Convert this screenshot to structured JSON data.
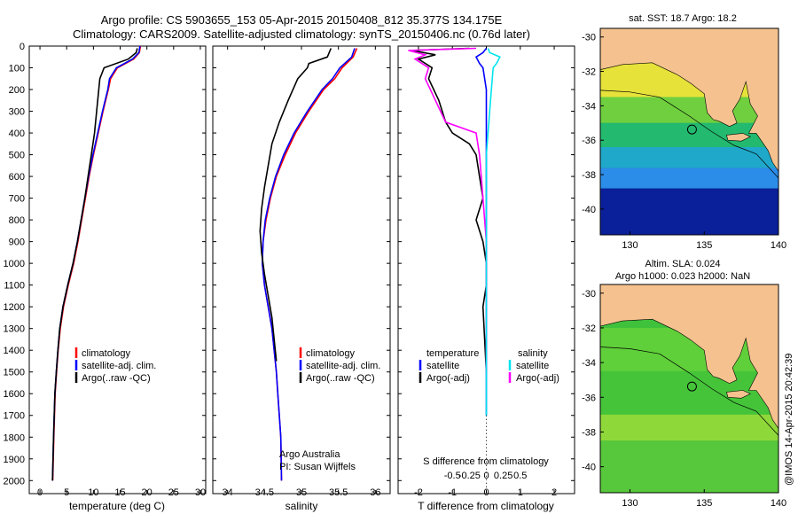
{
  "header": {
    "line1": "Argo profile: CS 5903655_153 05-Apr-2015 20150408_812 35.377S 134.175E",
    "line2": "Climatology: CARS2009. Satellite-adjusted climatology: synTS_20150406.nc (0.76d later)"
  },
  "map_top_title": "sat. SST: 18.7 Argo: 18.2",
  "map_bottom_title1": "Altim. SLA: 0.024",
  "map_bottom_title2": "Argo h1000: 0.023 h2000: NaN",
  "credit": "Argo Australia",
  "pi": "PI: Susan Wijffels",
  "timestamp": "@IMOS 14-Apr-2015 20:42:39",
  "colors": {
    "climatology": "#ff0000",
    "satellite": "#0000ff",
    "argo": "#000000",
    "sat_salinity": "#00e5ee",
    "argo_salinity": "#ff00ff",
    "land": "#f5c28f"
  },
  "chart_data": [
    {
      "type": "line",
      "xlabel": "temperature (deg C)",
      "xlim": [
        -2,
        31
      ],
      "xticks": [
        0,
        5,
        10,
        15,
        20,
        25,
        30
      ],
      "ylim": [
        0,
        2060
      ],
      "yticks": [
        0,
        100,
        200,
        300,
        400,
        500,
        600,
        700,
        800,
        900,
        1000,
        1100,
        1200,
        1300,
        1400,
        1500,
        1600,
        1700,
        1800,
        1900,
        2000
      ],
      "legend": [
        "climatology",
        "satellite-adj. clim.",
        "Argo(..raw -QC)"
      ],
      "series": [
        {
          "name": "climatology",
          "color": "#ff0000",
          "x": [
            18.8,
            18.6,
            17.5,
            14.5,
            13.2,
            12.8,
            11.8,
            10.9,
            10.0,
            9.2,
            8.5,
            7.8,
            7.1,
            6.3,
            5.3,
            4.4,
            3.8,
            3.4,
            3.1,
            2.85,
            2.6,
            2.4
          ],
          "y": [
            0,
            30,
            60,
            100,
            150,
            200,
            300,
            400,
            500,
            600,
            700,
            800,
            900,
            1000,
            1100,
            1200,
            1300,
            1400,
            1500,
            1600,
            1800,
            2000
          ]
        },
        {
          "name": "satellite-adj. clim.",
          "color": "#0000ff",
          "x": [
            18.7,
            18.5,
            17.3,
            14.3,
            13.0,
            12.7,
            11.7,
            10.8,
            9.9,
            9.1,
            8.4,
            7.7,
            7.0,
            6.2,
            5.2,
            4.3,
            3.7,
            3.35,
            3.05,
            2.8,
            2.55,
            2.35
          ],
          "y": [
            0,
            30,
            60,
            100,
            150,
            200,
            300,
            400,
            500,
            600,
            700,
            800,
            900,
            1000,
            1100,
            1200,
            1300,
            1400,
            1500,
            1600,
            1800,
            2000
          ]
        },
        {
          "name": "Argo(..raw -QC)",
          "color": "#000000",
          "x": [
            18.2,
            18.0,
            16.5,
            12.0,
            11.2,
            11.0,
            10.6,
            10.2,
            9.6,
            9.0,
            8.4,
            7.7,
            7.0,
            6.2,
            5.2,
            4.3,
            3.7,
            3.35,
            3.05,
            2.8,
            2.55,
            2.35
          ],
          "y": [
            10,
            30,
            60,
            100,
            150,
            200,
            300,
            400,
            500,
            600,
            700,
            800,
            900,
            1000,
            1100,
            1200,
            1300,
            1400,
            1500,
            1600,
            1800,
            2000
          ]
        }
      ]
    },
    {
      "type": "line",
      "xlabel": "salinity",
      "xlim": [
        33.8,
        36.2
      ],
      "xticks": [
        34,
        34.5,
        35,
        35.5,
        36
      ],
      "ylim": [
        0,
        2060
      ],
      "legend": [
        "climatology",
        "satellite-adj. clim.",
        "Argo(..raw -QC)"
      ],
      "series": [
        {
          "name": "climatology",
          "color": "#ff0000",
          "x": [
            35.75,
            35.7,
            35.55,
            35.45,
            35.3,
            35.1,
            34.92,
            34.78,
            34.66,
            34.58,
            34.52,
            34.48,
            34.47,
            34.5,
            34.55,
            34.6,
            34.63,
            34.66,
            34.68,
            34.7,
            34.72,
            34.73
          ],
          "y": [
            10,
            50,
            100,
            150,
            200,
            300,
            400,
            500,
            600,
            700,
            800,
            900,
            1000,
            1100,
            1200,
            1300,
            1400,
            1500,
            1600,
            1700,
            1800,
            2000
          ]
        },
        {
          "name": "satellite-adj. clim.",
          "color": "#0000ff",
          "x": [
            35.72,
            35.68,
            35.52,
            35.42,
            35.28,
            35.08,
            34.9,
            34.76,
            34.65,
            34.57,
            34.51,
            34.48,
            34.47,
            34.5,
            34.55,
            34.6,
            34.63,
            34.66,
            34.68,
            34.7,
            34.72,
            34.73
          ],
          "y": [
            10,
            50,
            100,
            150,
            200,
            300,
            400,
            500,
            600,
            700,
            800,
            900,
            1000,
            1100,
            1200,
            1300,
            1400,
            1500,
            1600,
            1700,
            1800,
            2000
          ]
        },
        {
          "name": "Argo(..raw -QC)",
          "color": "#000000",
          "x": [
            35.4,
            35.35,
            35.1,
            35.08,
            34.95,
            34.82,
            34.7,
            34.6,
            34.55,
            34.5,
            34.46,
            34.44,
            34.46,
            34.5,
            34.55,
            34.6,
            34.63,
            34.66
          ],
          "y": [
            10,
            50,
            80,
            100,
            150,
            250,
            350,
            450,
            550,
            650,
            750,
            850,
            950,
            1050,
            1150,
            1250,
            1350,
            1450
          ]
        }
      ]
    },
    {
      "type": "line",
      "xlabel": "T difference from climatology",
      "xlabel2": "S difference from climatology",
      "xlim": [
        -2.6,
        2.6
      ],
      "xticks": [
        -2,
        -1,
        0,
        1,
        2
      ],
      "xticks2": [
        -0.5,
        -0.25,
        0,
        0.25,
        0.5
      ],
      "ylim": [
        0,
        2060
      ],
      "legend": [
        "temperature",
        "satellite",
        "Argo(-adj)",
        "salinity",
        "satellite",
        "Argo(-adj)"
      ],
      "series": [
        {
          "name": "satellite",
          "color": "#0000ff",
          "x": [
            0.0,
            -0.1,
            -0.3,
            -0.2,
            -0.1,
            0,
            0,
            0,
            0,
            0,
            0,
            0,
            0,
            0,
            0,
            0,
            0,
            0,
            0,
            0,
            0
          ],
          "y": [
            10,
            30,
            50,
            80,
            100,
            200,
            300,
            400,
            500,
            600,
            700,
            800,
            900,
            1000,
            1100,
            1200,
            1300,
            1400,
            1500,
            1600,
            1700
          ]
        },
        {
          "name": "Argo(-adj)",
          "color": "#000000",
          "x": [
            -0.5,
            -2.2,
            -1.5,
            -2.0,
            -1.6,
            -1.7,
            -1.4,
            -1.2,
            -1.0,
            -0.5,
            -0.3,
            -0.2,
            -0.1,
            -0.3,
            -0.1,
            0,
            0,
            -0.1,
            0
          ],
          "y": [
            10,
            20,
            40,
            60,
            100,
            150,
            250,
            350,
            400,
            450,
            500,
            600,
            700,
            800,
            900,
            1000,
            1100,
            1200,
            1500
          ]
        },
        {
          "name": "Argo(-adj)",
          "color": "#ff00ff",
          "x": [
            -0.3,
            -2.3,
            -1.8,
            -2.1,
            -1.7,
            -1.8,
            -1.5,
            -1.2,
            -0.3,
            -0.2,
            -0.1,
            0,
            0,
            0
          ],
          "y": [
            10,
            20,
            40,
            60,
            100,
            150,
            250,
            350,
            400,
            500,
            700,
            900,
            1100,
            1500
          ]
        },
        {
          "name": "satellite",
          "color": "#00e5ee",
          "x": [
            0.05,
            0.1,
            0.4,
            0.3,
            0.2,
            0.15,
            0.1,
            0.05,
            0,
            0,
            0,
            0,
            0,
            0,
            0,
            0,
            0,
            0
          ],
          "y": [
            10,
            30,
            50,
            80,
            100,
            200,
            300,
            400,
            500,
            600,
            700,
            800,
            900,
            1000,
            1200,
            1400,
            1600,
            1700
          ]
        }
      ]
    },
    {
      "type": "heatmap",
      "title": "sat. SST: 18.7 Argo: 18.2",
      "xlim": [
        128,
        140
      ],
      "ylim": [
        -41.5,
        -29.5
      ],
      "xticks": [
        130,
        135,
        140
      ],
      "yticks": [
        -30,
        -32,
        -34,
        -36,
        -38,
        -40
      ],
      "marker": {
        "lon": 134.175,
        "lat": -35.377
      }
    },
    {
      "type": "heatmap",
      "title": "Altim. SLA: 0.024",
      "subtitle": "Argo h1000: 0.023 h2000: NaN",
      "xlim": [
        128,
        140
      ],
      "ylim": [
        -41.5,
        -29.5
      ],
      "xticks": [
        130,
        135,
        140
      ],
      "yticks": [
        -30,
        -32,
        -34,
        -36,
        -38,
        -40
      ],
      "marker": {
        "lon": 134.175,
        "lat": -35.377
      }
    }
  ]
}
